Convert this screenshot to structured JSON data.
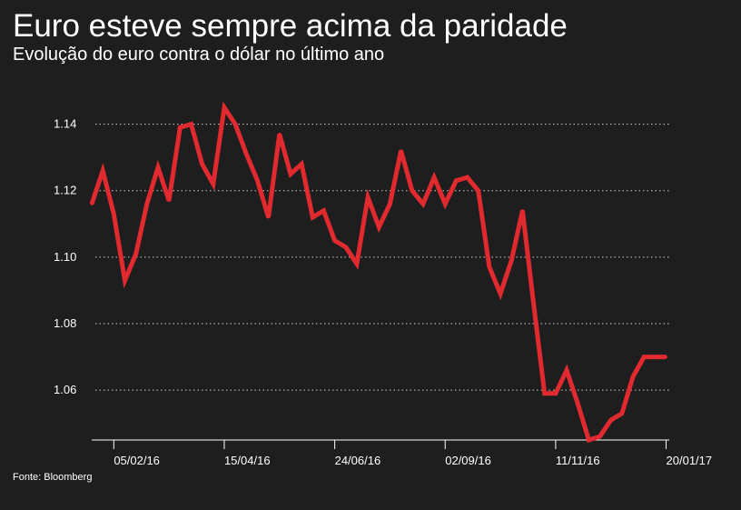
{
  "title": "Euro esteve sempre acima da paridade",
  "subtitle": "Evolução do euro contra o dólar no último ano",
  "source": "Fonte: Bloomberg",
  "colors": {
    "background": "#1f1e1e",
    "line": "#e02a2f",
    "text": "#ffffff",
    "grid": "#cfcfcf"
  },
  "chart_data": {
    "type": "line",
    "title": "Euro esteve sempre acima da paridade",
    "subtitle": "Evolução do euro contra o dólar no último ano",
    "ylim": [
      1.045,
      1.15
    ],
    "yticks": [
      1.06,
      1.08,
      1.1,
      1.12,
      1.14
    ],
    "ytick_labels": [
      "1.06",
      "1.08",
      "1.10",
      "1.12",
      "1.14"
    ],
    "xlim": [
      "2016-01-22",
      "2017-01-22"
    ],
    "xticks": [
      "2016-02-05",
      "2016-04-15",
      "2016-06-24",
      "2016-09-02",
      "2016-11-11",
      "2017-01-20"
    ],
    "xtick_labels": [
      "05/02/16",
      "15/04/16",
      "24/06/16",
      "02/09/16",
      "11/11/16",
      "20/01/17"
    ],
    "grid": true,
    "series": [
      {
        "x": [
          "2016-01-22",
          "2016-01-29",
          "2016-02-05",
          "2016-02-12",
          "2016-02-19",
          "2016-02-26",
          "2016-03-04",
          "2016-03-11",
          "2016-03-18",
          "2016-03-25",
          "2016-04-01",
          "2016-04-08",
          "2016-04-15",
          "2016-04-22",
          "2016-04-29",
          "2016-05-06",
          "2016-05-13",
          "2016-05-20",
          "2016-05-27",
          "2016-06-03",
          "2016-06-10",
          "2016-06-17",
          "2016-06-24",
          "2016-07-01",
          "2016-07-08",
          "2016-07-15",
          "2016-07-22",
          "2016-07-29",
          "2016-08-05",
          "2016-08-12",
          "2016-08-19",
          "2016-08-26",
          "2016-09-02",
          "2016-09-09",
          "2016-09-16",
          "2016-09-23",
          "2016-09-30",
          "2016-10-07",
          "2016-10-14",
          "2016-10-21",
          "2016-10-28",
          "2016-11-04",
          "2016-11-11",
          "2016-11-18",
          "2016-11-25",
          "2016-12-02",
          "2016-12-09",
          "2016-12-16",
          "2016-12-23",
          "2016-12-30",
          "2017-01-06",
          "2017-01-13",
          "2017-01-20"
        ],
        "values": [
          1.116,
          1.126,
          1.113,
          1.093,
          1.101,
          1.116,
          1.127,
          1.117,
          1.139,
          1.14,
          1.128,
          1.122,
          1.145,
          1.14,
          1.131,
          1.123,
          1.112,
          1.137,
          1.125,
          1.128,
          1.112,
          1.114,
          1.105,
          1.103,
          1.098,
          1.118,
          1.109,
          1.116,
          1.132,
          1.12,
          1.116,
          1.124,
          1.116,
          1.123,
          1.124,
          1.12,
          1.097,
          1.089,
          1.099,
          1.114,
          1.086,
          1.059,
          1.059,
          1.066,
          1.056,
          1.045,
          1.046,
          1.051,
          1.053,
          1.064,
          1.07,
          1.07,
          1.07
        ]
      }
    ]
  }
}
